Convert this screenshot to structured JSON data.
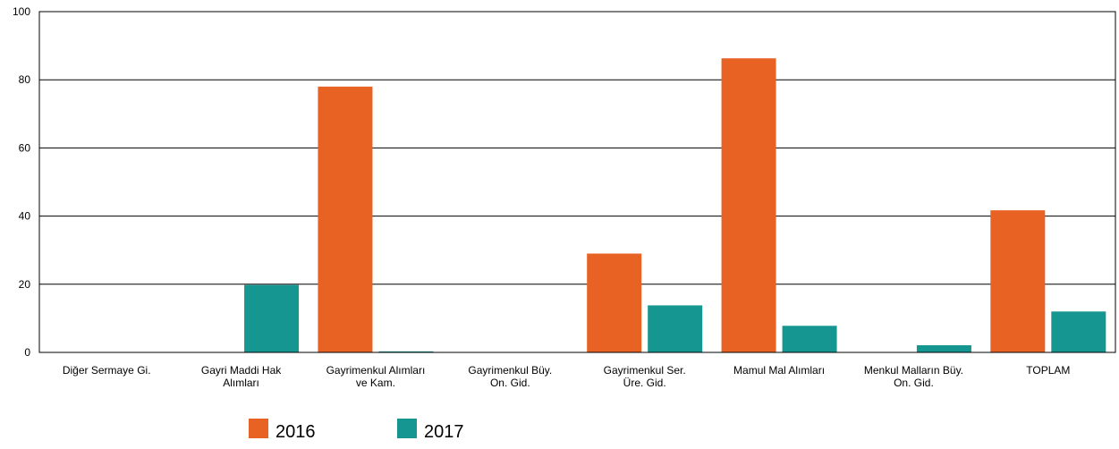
{
  "chart_data": {
    "type": "bar",
    "title": "",
    "xlabel": "",
    "ylabel": "",
    "ylim": [
      0,
      100
    ],
    "yticks": [
      0,
      20,
      40,
      60,
      80,
      100
    ],
    "grid": true,
    "legend_position": "bottom",
    "categories": [
      [
        "Diğer Sermaye Gi."
      ],
      [
        "Gayri Maddi Hak",
        "Alımları"
      ],
      [
        "Gayrimenkul Alımları",
        "ve Kam."
      ],
      [
        "Gayrimenkul Büy.",
        "On. Gid."
      ],
      [
        "Gayrimenkul Ser.",
        "Üre. Gid."
      ],
      [
        "Mamul Mal Alımları"
      ],
      [
        "Menkul Malların Büy.",
        "On. Gid."
      ],
      [
        "TOPLAM"
      ]
    ],
    "series": [
      {
        "name": "2016",
        "color": "#E86224",
        "values": [
          0,
          0,
          78,
          0,
          29,
          86.3,
          0,
          41.7
        ]
      },
      {
        "name": "2017",
        "color": "#159690",
        "values": [
          0,
          19.8,
          0.3,
          0,
          13.8,
          7.8,
          2.1,
          12
        ]
      }
    ]
  }
}
